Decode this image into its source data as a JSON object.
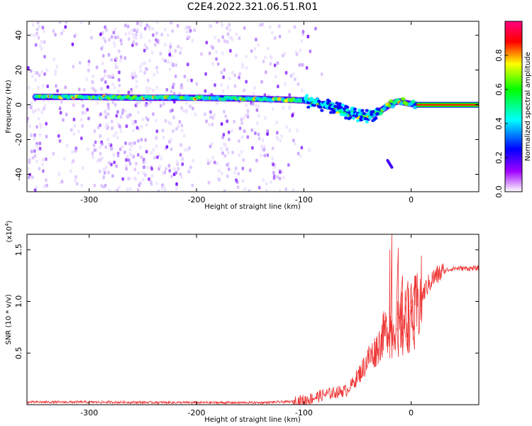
{
  "title": "C2E4.2022.321.06.51.R01",
  "chart_data": [
    {
      "type": "heatmap",
      "xlabel": "Height of straight line (km)",
      "ylabel": "Frequency (Hz)",
      "xlim": [
        -358,
        63
      ],
      "ylim": [
        -50,
        48
      ],
      "x_ticks": [
        -300,
        -200,
        -100,
        0
      ],
      "y_ticks": [
        -40,
        -20,
        0,
        20,
        40
      ],
      "colorbar": {
        "label": "Normalized spectral amplitude",
        "range": [
          0,
          1
        ],
        "ticks": [
          "0.0",
          "0.2",
          "0.4",
          "0.6",
          "0.8"
        ],
        "colors": [
          "#ffffff",
          "#a000ff",
          "#0000ff",
          "#00ffff",
          "#00ff00",
          "#ffff00",
          "#ff0000",
          "#ff0080"
        ]
      },
      "ridge": {
        "x": [
          -350,
          -300,
          -250,
          -200,
          -150,
          -120,
          -100,
          -90,
          -80,
          -70,
          -60,
          -50,
          -40,
          -35,
          -30,
          -25,
          -20,
          -15,
          -10,
          -5,
          0,
          5,
          63
        ],
        "y": [
          4.5,
          4.5,
          4,
          4,
          3.5,
          3,
          2.5,
          1.5,
          -0.5,
          -2,
          -4.5,
          -6,
          -6.5,
          -5.5,
          -4,
          -2,
          0,
          1.5,
          2,
          1,
          0.5,
          0,
          0
        ]
      },
      "secondary_streak": {
        "x": [
          -22,
          -18
        ],
        "y": [
          -32,
          -36
        ]
      }
    },
    {
      "type": "line",
      "xlabel": "Height of straight line (km)",
      "ylabel": "SNR (10 * v/v)",
      "y_multiplier": "(x10^4)",
      "xlim": [
        -358,
        63
      ],
      "ylim": [
        0,
        1.65
      ],
      "x_ticks": [
        -300,
        -200,
        -100,
        0
      ],
      "y_ticks": [
        0.5,
        1.0,
        1.5
      ],
      "color": "#ee3333",
      "envelope": {
        "x": [
          -358,
          -300,
          -200,
          -140,
          -110,
          -100,
          -90,
          -80,
          -70,
          -60,
          -55,
          -50,
          -45,
          -40,
          -35,
          -30,
          -25,
          -20,
          -15,
          -10,
          -5,
          0,
          5,
          10,
          15,
          20,
          25,
          30,
          35,
          40,
          50,
          63
        ],
        "y": [
          0.025,
          0.025,
          0.02,
          0.02,
          0.03,
          0.04,
          0.07,
          0.1,
          0.12,
          0.14,
          0.2,
          0.27,
          0.35,
          0.45,
          0.5,
          0.58,
          0.7,
          0.75,
          0.75,
          0.78,
          0.82,
          0.85,
          0.92,
          1.05,
          1.15,
          1.22,
          1.26,
          1.29,
          1.31,
          1.32,
          1.32,
          1.32
        ]
      },
      "spikes": [
        {
          "x": -20,
          "y": 1.5
        },
        {
          "x": -18,
          "y": 1.65
        },
        {
          "x": -12,
          "y": 1.52
        },
        {
          "x": -8,
          "y": 1.25
        },
        {
          "x": -3,
          "y": 1.2
        },
        {
          "x": 3,
          "y": 1.15
        }
      ]
    }
  ]
}
